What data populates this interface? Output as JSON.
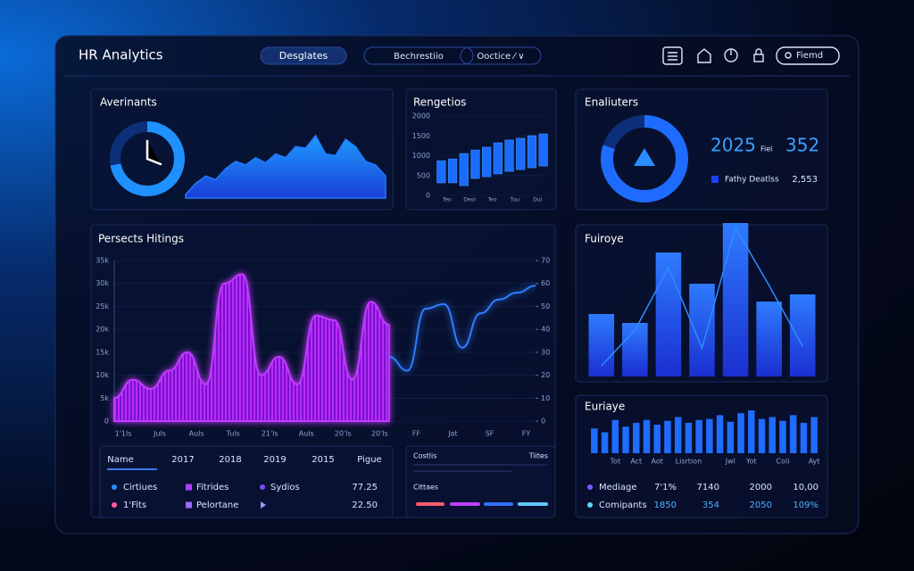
{
  "header": {
    "title": "HR Analytics",
    "tabs": [
      "Desglates",
      "Bechrestiio",
      "Ooctice ⁄ ∨"
    ],
    "button": "Fiemd"
  },
  "chart_data": [
    {
      "type": "area",
      "title": "Averinants",
      "gauge": 72,
      "color": "#1e7bff",
      "values": [
        5,
        20,
        30,
        25,
        40,
        50,
        45,
        55,
        48,
        60,
        55,
        70,
        68,
        85,
        60,
        58,
        80,
        70,
        50,
        45,
        30
      ]
    },
    {
      "type": "floating-bar",
      "title": "Rengetios",
      "color": "#1a6cff",
      "categories": [
        "Teo",
        null,
        "Deoi",
        null,
        "Teo",
        null,
        "Tuu",
        null,
        "Dui",
        null
      ],
      "low": [
        315,
        315,
        245,
        425,
        470,
        540,
        605,
        650,
        695,
        740
      ],
      "high": [
        875,
        920,
        1055,
        1145,
        1215,
        1325,
        1395,
        1440,
        1505,
        1550
      ],
      "ylim": [
        0,
        2000
      ],
      "yticks": [
        0,
        500,
        1000,
        1500,
        2000
      ]
    },
    {
      "type": "gauge",
      "title": "Enaliuters",
      "value": 80,
      "color": "#1e6bff",
      "kpi": 2025,
      "kpi_unit": "Fiel",
      "kpi2": 352,
      "legend_name": "Fathy Deatlss",
      "legend_value": "2,553"
    },
    {
      "type": "area-line",
      "title": "Persects Hitings",
      "categories": [
        "1'1ls",
        null,
        "Juls",
        null,
        "Auls",
        null,
        "Tuls",
        null,
        "21'ls",
        null,
        "Auls",
        null,
        "20'ls",
        null,
        "20'ls",
        null,
        "FF",
        null,
        "Jat",
        null,
        "SF",
        null,
        "FY",
        null
      ],
      "series": [
        {
          "color": "#c03cff",
          "values": [
            5000,
            9000,
            7000,
            11000,
            15000,
            8000,
            30000,
            32000,
            10000,
            14000,
            8000,
            23000,
            22000,
            9000,
            26000,
            21000,
            null,
            null,
            null,
            null,
            null,
            null,
            null,
            null
          ]
        },
        {
          "color": "#2f7dff",
          "axis": "y2",
          "values": [
            null,
            null,
            null,
            null,
            null,
            null,
            null,
            null,
            null,
            null,
            null,
            null,
            null,
            null,
            null,
            28,
            22,
            49,
            51,
            32,
            47,
            53,
            56,
            59
          ]
        }
      ],
      "ylim": [
        0,
        35000
      ],
      "yticks": [
        0,
        {
          "value": 5000,
          "label": "5k"
        },
        {
          "value": 10000,
          "label": "10k"
        },
        {
          "value": 15000,
          "label": "15k"
        },
        {
          "value": 20000,
          "label": "20k"
        },
        {
          "value": 25000,
          "label": "25k"
        },
        {
          "value": 30000,
          "label": "30k"
        },
        {
          "value": 35000,
          "label": "35k"
        }
      ],
      "y2lim": [
        0,
        70
      ],
      "y2ticks": [
        0,
        10,
        20,
        30,
        40,
        50,
        60,
        70
      ]
    },
    {
      "type": "bar-line",
      "title": "Fuiroye",
      "color": "#1f5fff",
      "line_color": "#2f8cff",
      "values": [
        70,
        60,
        139,
        104,
        172,
        84,
        92
      ],
      "trend": [
        12,
        52,
        122,
        32,
        167,
        102,
        34
      ]
    },
    {
      "type": "bar",
      "title": "Euriaye",
      "color": "#1f6cff",
      "categories": [
        null,
        null,
        "Tot",
        null,
        "Act",
        null,
        "Aot",
        null,
        null,
        "Lisrtion",
        null,
        null,
        null,
        "Jwl",
        null,
        "Yot",
        null,
        null,
        "Coli",
        null,
        null,
        "Ayt"
      ],
      "values": [
        26,
        22,
        35,
        28,
        32,
        35,
        30,
        34,
        38,
        32,
        35,
        36,
        40,
        33,
        42,
        45,
        36,
        38,
        34,
        40,
        32,
        38
      ]
    }
  ],
  "table": {
    "header": [
      "Name",
      "2017",
      "2018",
      "2019",
      "2015",
      "Pigue"
    ],
    "rows": [
      {
        "name": "Cirtiues",
        "tag": "Fitrides",
        "tag2": "Sydios",
        "value": "77.25"
      },
      {
        "name": "1'Fits",
        "tag": "Pelortane",
        "value": "22.50"
      }
    ]
  },
  "legend_panel": {
    "title": "Costlis",
    "subtitle": "Tiites",
    "caption": "Cittaes",
    "colors": [
      "#ff5a6e",
      "#c040ff",
      "#3070ff",
      "#60c8ff"
    ]
  },
  "stats": {
    "rows": [
      [
        "Mediage",
        "7'1%",
        "7140",
        "2000",
        "10,00"
      ],
      [
        "Comipants",
        "1850",
        "354",
        "2050",
        "109%"
      ]
    ],
    "colors": [
      "#7b5cff",
      "#5fd8ff"
    ]
  }
}
